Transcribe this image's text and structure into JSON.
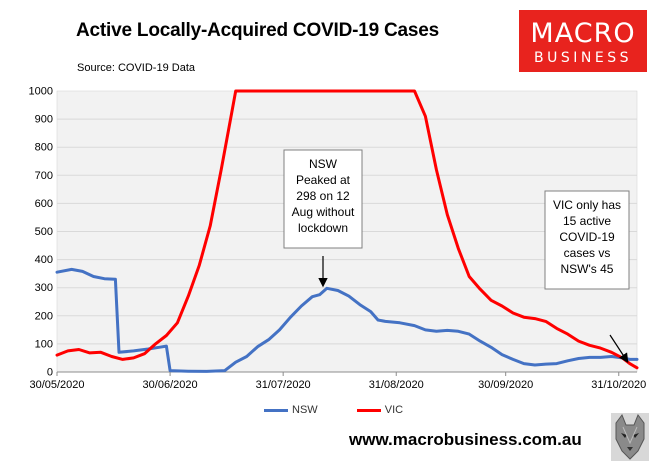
{
  "title": "Active Locally-Acquired COVID-19 Cases",
  "source": "Source: COVID-19 Data",
  "logo": {
    "line1": "MACRO",
    "line2": "BUSINESS",
    "color": "#e8231e"
  },
  "footer": "www.macrobusiness.com.au",
  "chart_data": {
    "type": "line",
    "ylim": [
      0,
      1000
    ],
    "yticks": [
      0,
      100,
      200,
      300,
      400,
      500,
      600,
      700,
      800,
      900,
      1000
    ],
    "xrange": [
      "2020-05-30",
      "2020-11-05"
    ],
    "xticks": [
      "30/05/2020",
      "30/06/2020",
      "31/07/2020",
      "31/08/2020",
      "30/09/2020",
      "31/10/2020"
    ],
    "plot_background": "#f2f2f2",
    "series": [
      {
        "name": "NSW",
        "color": "#4472c4",
        "points": [
          [
            "2020-05-30",
            355
          ],
          [
            "2020-06-03",
            365
          ],
          [
            "2020-06-06",
            358
          ],
          [
            "2020-06-09",
            340
          ],
          [
            "2020-06-12",
            332
          ],
          [
            "2020-06-15",
            330
          ],
          [
            "2020-06-16",
            70
          ],
          [
            "2020-06-20",
            75
          ],
          [
            "2020-06-24",
            82
          ],
          [
            "2020-06-27",
            88
          ],
          [
            "2020-06-29",
            92
          ],
          [
            "2020-06-30",
            5
          ],
          [
            "2020-07-05",
            3
          ],
          [
            "2020-07-10",
            2
          ],
          [
            "2020-07-15",
            5
          ],
          [
            "2020-07-18",
            35
          ],
          [
            "2020-07-21",
            55
          ],
          [
            "2020-07-24",
            90
          ],
          [
            "2020-07-27",
            115
          ],
          [
            "2020-07-30",
            150
          ],
          [
            "2020-08-02",
            195
          ],
          [
            "2020-08-05",
            235
          ],
          [
            "2020-08-08",
            268
          ],
          [
            "2020-08-10",
            275
          ],
          [
            "2020-08-12",
            298
          ],
          [
            "2020-08-15",
            290
          ],
          [
            "2020-08-18",
            270
          ],
          [
            "2020-08-21",
            240
          ],
          [
            "2020-08-24",
            215
          ],
          [
            "2020-08-26",
            185
          ],
          [
            "2020-08-28",
            180
          ],
          [
            "2020-09-01",
            175
          ],
          [
            "2020-09-05",
            165
          ],
          [
            "2020-09-08",
            150
          ],
          [
            "2020-09-11",
            145
          ],
          [
            "2020-09-14",
            148
          ],
          [
            "2020-09-17",
            145
          ],
          [
            "2020-09-20",
            135
          ],
          [
            "2020-09-23",
            110
          ],
          [
            "2020-09-26",
            88
          ],
          [
            "2020-09-29",
            62
          ],
          [
            "2020-10-02",
            45
          ],
          [
            "2020-10-05",
            30
          ],
          [
            "2020-10-08",
            25
          ],
          [
            "2020-10-11",
            28
          ],
          [
            "2020-10-14",
            30
          ],
          [
            "2020-10-17",
            40
          ],
          [
            "2020-10-20",
            48
          ],
          [
            "2020-10-23",
            52
          ],
          [
            "2020-10-26",
            52
          ],
          [
            "2020-10-29",
            55
          ],
          [
            "2020-11-01",
            50
          ],
          [
            "2020-11-03",
            45
          ],
          [
            "2020-11-05",
            45
          ]
        ]
      },
      {
        "name": "VIC",
        "color": "#ff0000",
        "points": [
          [
            "2020-05-30",
            60
          ],
          [
            "2020-06-02",
            75
          ],
          [
            "2020-06-05",
            80
          ],
          [
            "2020-06-08",
            68
          ],
          [
            "2020-06-11",
            70
          ],
          [
            "2020-06-14",
            55
          ],
          [
            "2020-06-17",
            45
          ],
          [
            "2020-06-20",
            50
          ],
          [
            "2020-06-23",
            65
          ],
          [
            "2020-06-26",
            100
          ],
          [
            "2020-06-29",
            130
          ],
          [
            "2020-07-02",
            175
          ],
          [
            "2020-07-05",
            270
          ],
          [
            "2020-07-08",
            380
          ],
          [
            "2020-07-11",
            520
          ],
          [
            "2020-07-14",
            720
          ],
          [
            "2020-07-17",
            930
          ],
          [
            "2020-07-18",
            1000
          ],
          [
            "2020-09-05",
            1000
          ],
          [
            "2020-09-08",
            910
          ],
          [
            "2020-09-11",
            720
          ],
          [
            "2020-09-14",
            560
          ],
          [
            "2020-09-17",
            440
          ],
          [
            "2020-09-20",
            340
          ],
          [
            "2020-09-23",
            295
          ],
          [
            "2020-09-26",
            255
          ],
          [
            "2020-09-29",
            235
          ],
          [
            "2020-10-02",
            210
          ],
          [
            "2020-10-05",
            195
          ],
          [
            "2020-10-08",
            190
          ],
          [
            "2020-10-11",
            180
          ],
          [
            "2020-10-14",
            155
          ],
          [
            "2020-10-17",
            135
          ],
          [
            "2020-10-20",
            110
          ],
          [
            "2020-10-23",
            95
          ],
          [
            "2020-10-26",
            85
          ],
          [
            "2020-10-29",
            70
          ],
          [
            "2020-11-01",
            50
          ],
          [
            "2020-11-03",
            30
          ],
          [
            "2020-11-05",
            15
          ]
        ]
      }
    ],
    "annotations": [
      {
        "id": "nsw-peak",
        "lines": [
          "NSW",
          "Peaked at",
          "298 on 12",
          "Aug without",
          "lockdown"
        ],
        "arrow_to": [
          "2020-08-12",
          298
        ]
      },
      {
        "id": "vic-note",
        "lines": [
          "VIC only has",
          "15 active",
          "COVID-19",
          "cases vs",
          "NSW's 45"
        ],
        "arrow_to": [
          "2020-11-04",
          20
        ]
      }
    ],
    "legend": {
      "position": "bottom",
      "entries": [
        "NSW",
        "VIC"
      ]
    }
  }
}
